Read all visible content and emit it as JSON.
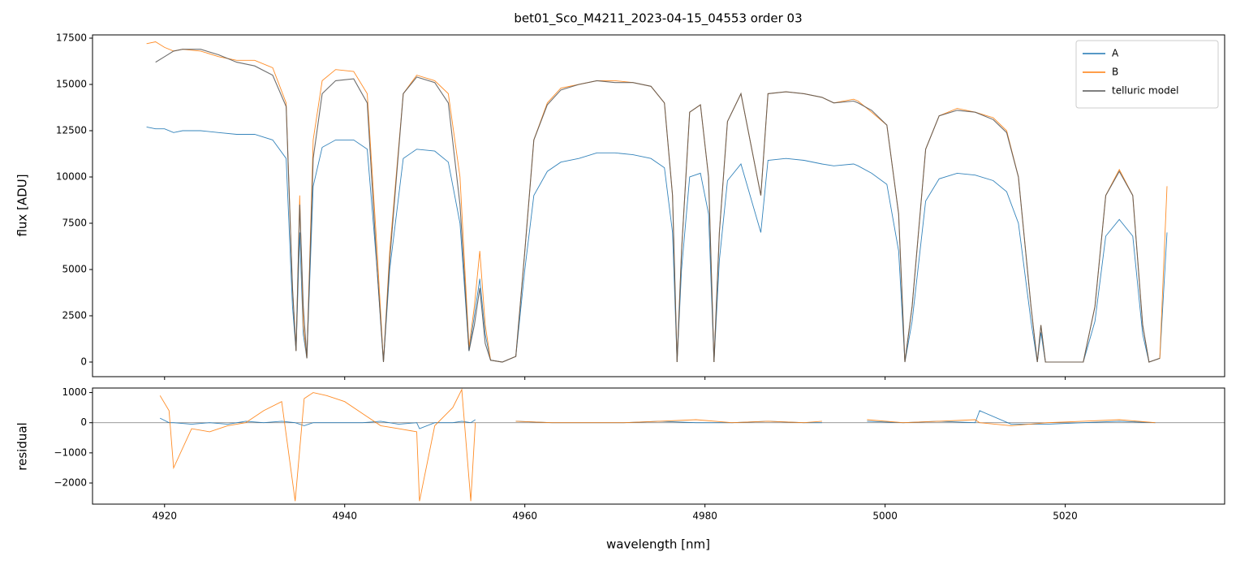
{
  "chart_data": [
    {
      "type": "line",
      "title": "bet01_Sco_M4211_2023-04-15_04553  order 03",
      "ylabel": "flux [ADU]",
      "xlim": [
        4912,
        5037.7
      ],
      "ylim": [
        -790,
        17675
      ],
      "xticks": [
        4920,
        4940,
        4960,
        4980,
        5000,
        5020
      ],
      "yticks": [
        0,
        2500,
        5000,
        7500,
        10000,
        12500,
        15000,
        17500
      ],
      "legend": "upper right",
      "x": [
        4918,
        4919,
        4920,
        4921,
        4922,
        4924,
        4926,
        4928,
        4930,
        4932,
        4933.5,
        4934.2,
        4934.6,
        4935.0,
        4935.4,
        4935.8,
        4936.5,
        4937.5,
        4939,
        4941,
        4942.5,
        4943.6,
        4944.3,
        4945.0,
        4946.5,
        4948,
        4950,
        4951.5,
        4952.8,
        4953.8,
        4954.4,
        4955.0,
        4955.6,
        4956.2,
        4957.5,
        4959.0,
        4960.0,
        4961.0,
        4962.5,
        4964,
        4966,
        4968,
        4970,
        4972,
        4974,
        4975.5,
        4976.4,
        4976.9,
        4977.4,
        4978.3,
        4979.5,
        4980.4,
        4981.0,
        4981.6,
        4982.5,
        4984,
        4986.2,
        4987,
        4989,
        4991,
        4993,
        4994.3,
        4996.5,
        4997,
        4998.5,
        5000.2,
        5001.5,
        5002.2,
        5003,
        5004.5,
        5006,
        5008,
        5010,
        5012,
        5013.5,
        5014.8,
        5016.2,
        5016.9,
        5017.3,
        5017.8,
        5018.5,
        5020,
        5022,
        5023.3,
        5024.5,
        5026,
        5027.5,
        5028.6,
        5029.3,
        5030.5,
        5031.3
      ],
      "series": [
        {
          "name": "A",
          "color": "#1f77b4",
          "values": [
            12700,
            12600,
            12600,
            12400,
            12500,
            12500,
            12400,
            12300,
            12300,
            12000,
            11000,
            3000,
            600,
            7000,
            1500,
            200,
            9500,
            11600,
            12000,
            12000,
            11500,
            5000,
            0,
            5000,
            11000,
            11500,
            11400,
            10800,
            7500,
            600,
            2500,
            4500,
            1500,
            100,
            0,
            300,
            5000,
            9000,
            10300,
            10800,
            11000,
            11300,
            11300,
            11200,
            11000,
            10500,
            7000,
            0,
            5000,
            10000,
            10200,
            8000,
            0,
            5500,
            9800,
            10700,
            7000,
            10900,
            11000,
            10900,
            10700,
            10600,
            10700,
            10600,
            10200,
            9600,
            6000,
            0,
            2200,
            8700,
            9900,
            10200,
            10100,
            9800,
            9200,
            7500,
            2200,
            0,
            1600,
            0,
            0,
            0,
            0,
            2200,
            6800,
            7700,
            6800,
            1500,
            0,
            200,
            7000
          ]
        },
        {
          "name": "B",
          "color": "#ff7f0e",
          "values": [
            17200,
            17300,
            17000,
            16800,
            16900,
            16800,
            16500,
            16300,
            16300,
            15900,
            14000,
            4000,
            600,
            9000,
            2000,
            200,
            12000,
            15200,
            15800,
            15700,
            14500,
            6000,
            0,
            6000,
            14500,
            15500,
            15200,
            14500,
            10000,
            800,
            3000,
            6000,
            2000,
            100,
            0,
            300,
            6000,
            12000,
            14000,
            14800,
            15000,
            15200,
            15200,
            15100,
            14900,
            14000,
            9000,
            0,
            6000,
            13500,
            13900,
            10000,
            0,
            7000,
            13000,
            14500,
            9000,
            14500,
            14600,
            14500,
            14300,
            14000,
            14200,
            14100,
            13500,
            12800,
            8000,
            0,
            3000,
            11500,
            13300,
            13700,
            13500,
            13200,
            12500,
            10000,
            3000,
            0,
            2000,
            0,
            0,
            0,
            0,
            3000,
            9000,
            10400,
            9000,
            2000,
            0,
            200,
            9500
          ]
        },
        {
          "name": "telluric model",
          "color": "#555555",
          "values": [
            null,
            16200,
            16500,
            16800,
            16900,
            16900,
            16600,
            16200,
            16000,
            15500,
            13800,
            4000,
            600,
            8500,
            3000,
            200,
            11000,
            14500,
            15200,
            15300,
            14000,
            5000,
            0,
            5500,
            14500,
            15400,
            15100,
            14000,
            8500,
            600,
            2000,
            4000,
            1000,
            100,
            0,
            300,
            6000,
            12000,
            13900,
            14700,
            15000,
            15200,
            15100,
            15100,
            14900,
            14000,
            9000,
            0,
            6000,
            13500,
            13900,
            10000,
            0,
            7000,
            13000,
            14500,
            9000,
            14500,
            14600,
            14500,
            14300,
            14000,
            14100,
            14000,
            13600,
            12800,
            8000,
            0,
            3000,
            11500,
            13300,
            13600,
            13500,
            13100,
            12400,
            10000,
            3000,
            0,
            2000,
            0,
            0,
            0,
            0,
            3000,
            9000,
            10300,
            9000,
            2000,
            0,
            200,
            null
          ]
        }
      ]
    },
    {
      "type": "line",
      "ylabel": "residual",
      "xlabel": "wavelength [nm]",
      "xlim": [
        4912,
        5037.7
      ],
      "ylim": [
        -2700,
        1150
      ],
      "xticks": [
        4920,
        4940,
        4960,
        4980,
        5000,
        5020
      ],
      "yticks": [
        {
          "value": -2000,
          "label": "−2000"
        },
        {
          "value": -1000,
          "label": "−1000"
        },
        0,
        1000
      ],
      "x": [
        4919.5,
        4920.5,
        4921,
        4923,
        4925,
        4927,
        4929,
        4931,
        4933,
        4934.5,
        4935.5,
        4936.5,
        4938,
        4940,
        4942,
        4944,
        4946,
        4948,
        4948.3,
        4950,
        4952,
        4953,
        4954,
        4954.5,
        4957,
        4959,
        4963,
        4967,
        4971,
        4975,
        4979,
        4983,
        4987,
        4991,
        4993,
        4995,
        4998,
        5002,
        5006,
        5010,
        5010.5,
        5014,
        5018,
        5022,
        5026,
        5030
      ],
      "series": [
        {
          "name": "A",
          "color": "#1f77b4",
          "values": [
            150,
            0,
            0,
            -50,
            0,
            -50,
            50,
            0,
            50,
            0,
            -100,
            0,
            0,
            0,
            0,
            50,
            -50,
            0,
            -200,
            0,
            0,
            50,
            0,
            100,
            null,
            50,
            0,
            0,
            0,
            50,
            0,
            0,
            50,
            0,
            0,
            null,
            50,
            0,
            50,
            0,
            400,
            -50,
            -50,
            0,
            50,
            0
          ]
        },
        {
          "name": "B",
          "color": "#ff7f0e",
          "values": [
            900,
            400,
            -1500,
            -200,
            -300,
            -100,
            0,
            400,
            700,
            -2600,
            800,
            1000,
            900,
            700,
            300,
            -100,
            -200,
            -300,
            -2600,
            -100,
            500,
            1100,
            -2600,
            0,
            null,
            50,
            0,
            0,
            0,
            50,
            100,
            0,
            50,
            0,
            50,
            null,
            100,
            0,
            50,
            100,
            0,
            -100,
            0,
            50,
            100,
            0
          ]
        }
      ]
    }
  ]
}
